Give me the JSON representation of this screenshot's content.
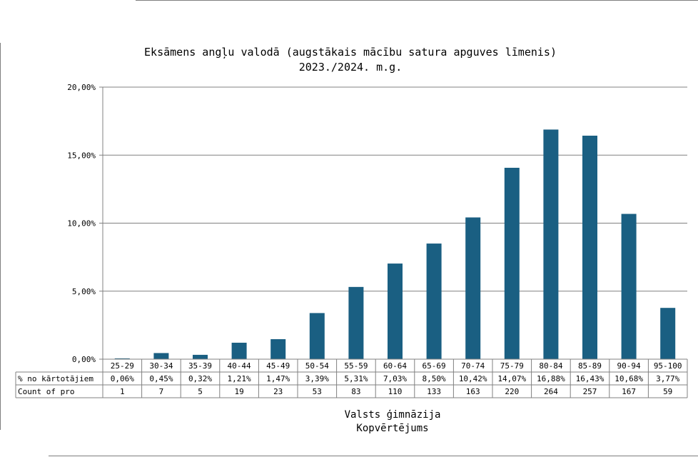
{
  "colors": {
    "bar": "#1a5f82",
    "grid": "#808080",
    "table_border": "#808080",
    "frame": "#7f7f7f"
  },
  "chart_data": {
    "type": "bar",
    "title_line1": "Eksāmens angļu valodā (augstākais mācību satura apguves līmenis)",
    "title_line2": "2023./2024. m.g.",
    "xlabel_line1": "Valsts ģimnāzija",
    "xlabel_line2": "Kopvērtējums",
    "ylim": [
      0,
      20
    ],
    "yticks": [
      0,
      5,
      10,
      15,
      20
    ],
    "ytick_labels": [
      "0,00%",
      "5,00%",
      "10,00%",
      "15,00%",
      "20,00%"
    ],
    "grid": true,
    "categories": [
      "25-29",
      "30-34",
      "35-39",
      "40-44",
      "45-49",
      "50-54",
      "55-59",
      "60-64",
      "65-69",
      "70-74",
      "75-79",
      "80-84",
      "85-89",
      "90-94",
      "95-100"
    ],
    "series": [
      {
        "name": "% no kārtotājiem",
        "values": [
          0.06,
          0.45,
          0.32,
          1.21,
          1.47,
          3.39,
          5.31,
          7.03,
          8.5,
          10.42,
          14.07,
          16.88,
          16.43,
          10.68,
          3.77
        ],
        "labels": [
          "0,06%",
          "0,45%",
          "0,32%",
          "1,21%",
          "1,47%",
          "3,39%",
          "5,31%",
          "7,03%",
          "8,50%",
          "10,42%",
          "14,07%",
          "16,88%",
          "16,43%",
          "10,68%",
          "3,77%"
        ]
      }
    ],
    "table_rows": [
      {
        "header": "% no kārtotājiem",
        "cells": [
          "0,06%",
          "0,45%",
          "0,32%",
          "1,21%",
          "1,47%",
          "3,39%",
          "5,31%",
          "7,03%",
          "8,50%",
          "10,42%",
          "14,07%",
          "16,88%",
          "16,43%",
          "10,68%",
          "3,77%"
        ]
      },
      {
        "header": "Count of pro",
        "cells": [
          "1",
          "7",
          "5",
          "19",
          "23",
          "53",
          "83",
          "110",
          "133",
          "163",
          "220",
          "264",
          "257",
          "167",
          "59"
        ]
      }
    ]
  }
}
